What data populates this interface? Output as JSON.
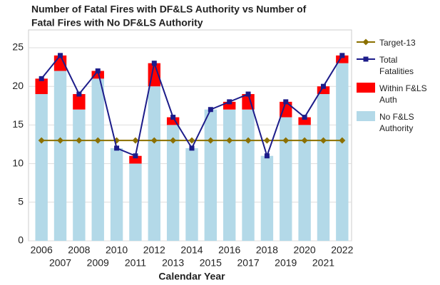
{
  "chart_data": {
    "type": "stacked_bar_line",
    "title": [
      "Number of Fatal Fires with DF&LS Authority vs Number of",
      "Fatal Fires with No DF&LS Authority"
    ],
    "x_label": "Calendar Year",
    "categories": [
      "2006",
      "2007",
      "2008",
      "2009",
      "2010",
      "2011",
      "2012",
      "2013",
      "2014",
      "2015",
      "2016",
      "2017",
      "2018",
      "2019",
      "2020",
      "2021",
      "2022"
    ],
    "series": [
      {
        "name": "Target-13",
        "kind": "line",
        "marker": "diamond",
        "color": "#8b7000",
        "values": [
          13,
          13,
          13,
          13,
          13,
          13,
          13,
          13,
          13,
          13,
          13,
          13,
          13,
          13,
          13,
          13,
          13
        ]
      },
      {
        "name": "Total Fatalities",
        "kind": "line",
        "marker": "square",
        "color": "#1c1c8a",
        "values": [
          21,
          24,
          19,
          22,
          12,
          11,
          23,
          16,
          12,
          17,
          18,
          19,
          11,
          18,
          16,
          20,
          24
        ]
      },
      {
        "name": "Within F&LS Auth",
        "kind": "stack",
        "color": "#ff0000",
        "values": [
          2,
          2,
          2,
          1,
          0,
          1,
          3,
          1,
          0,
          0,
          1,
          2,
          0,
          2,
          1,
          1,
          1
        ]
      },
      {
        "name": "No F&LS Authority",
        "kind": "stack",
        "color": "#b3d9e8",
        "values": [
          19,
          22,
          17,
          21,
          12,
          10,
          20,
          15,
          12,
          17,
          17,
          17,
          11,
          16,
          15,
          19,
          23
        ]
      }
    ],
    "ylim": [
      0,
      25
    ],
    "yticks": [
      0,
      5,
      10,
      15,
      20,
      25
    ],
    "grid": true
  }
}
